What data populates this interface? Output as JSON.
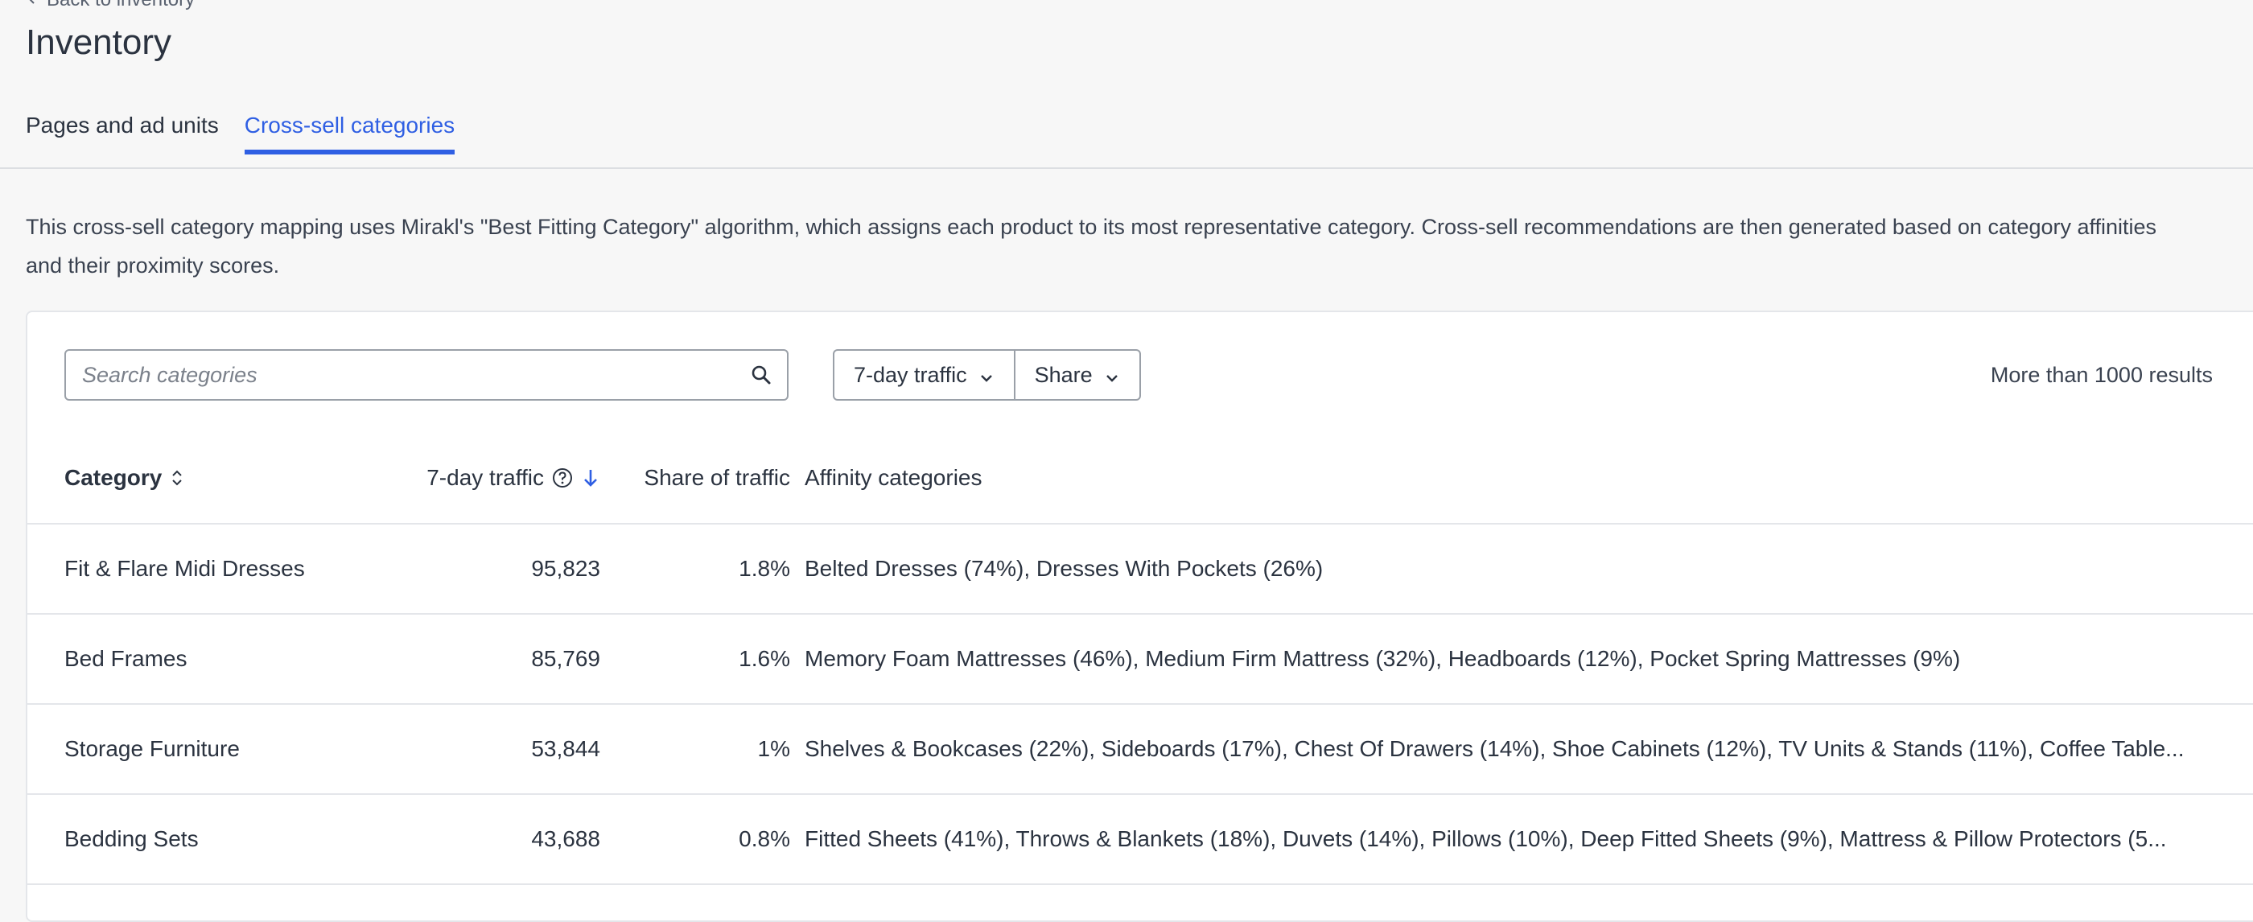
{
  "nav": {
    "back_label": "Back to inventory"
  },
  "page": {
    "title": "Inventory"
  },
  "tabs": [
    {
      "label": "Pages and ad units",
      "active": false
    },
    {
      "label": "Cross-sell categories",
      "active": true
    }
  ],
  "description": "This cross-sell category mapping uses Mirakl's \"Best Fitting Category\" algorithm, which assigns each product to its most representative category. Cross-sell recommendations are then generated based on category affinities and their proximity scores.",
  "toolbar": {
    "search_placeholder": "Search categories",
    "search_value": "",
    "traffic_filter_label": "7-day traffic",
    "share_filter_label": "Share",
    "results_count": "More than 1000 results"
  },
  "table": {
    "headers": {
      "category": "Category",
      "traffic": "7-day traffic",
      "share": "Share of traffic",
      "affinity": "Affinity categories"
    },
    "rows": [
      {
        "category": "Fit & Flare Midi Dresses",
        "traffic": "95,823",
        "share": "1.8%",
        "affinity": "Belted Dresses (74%), Dresses With Pockets (26%)"
      },
      {
        "category": "Bed Frames",
        "traffic": "85,769",
        "share": "1.6%",
        "affinity": "Memory Foam Mattresses (46%), Medium Firm Mattress (32%), Headboards (12%), Pocket Spring Mattresses (9%)"
      },
      {
        "category": "Storage Furniture",
        "traffic": "53,844",
        "share": "1%",
        "affinity": "Shelves & Bookcases (22%), Sideboards (17%), Chest Of Drawers (14%), Shoe Cabinets (12%), TV Units & Stands (11%), Coffee Table..."
      },
      {
        "category": "Bedding Sets",
        "traffic": "43,688",
        "share": "0.8%",
        "affinity": "Fitted Sheets (41%), Throws & Blankets (18%), Duvets (14%), Pillows (10%), Deep Fitted Sheets (9%), Mattress & Pillow Protectors (5..."
      }
    ]
  },
  "colors": {
    "accent": "#2f5fe3",
    "background": "#f7f7f7",
    "card": "#ffffff",
    "text": "#2b3340"
  },
  "icons": {
    "search": "search-icon",
    "chevron": "chevron-down-icon",
    "sort": "sort-icon",
    "help": "help-circle-icon",
    "sort_desc": "arrow-down-icon"
  }
}
